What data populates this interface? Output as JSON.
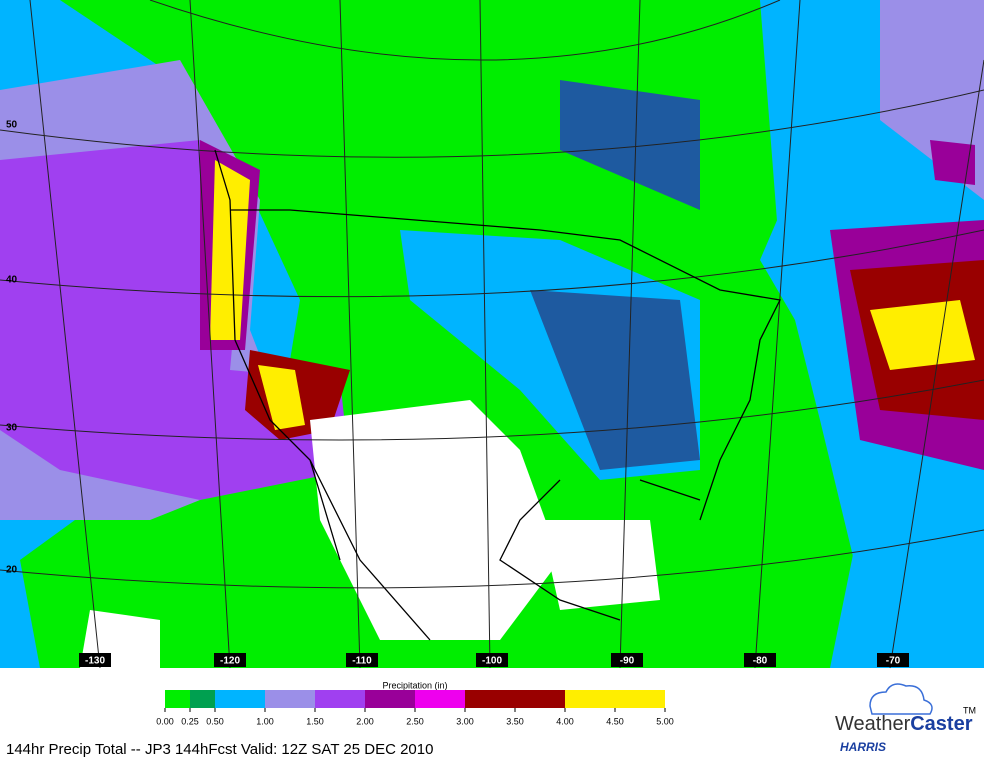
{
  "map": {
    "lat_labels": [
      50,
      40,
      30,
      20
    ],
    "lon_labels": [
      -130,
      -120,
      -110,
      -100,
      -90,
      -80,
      -70
    ],
    "legend": {
      "title": "Precipitation (in)",
      "ticks": [
        {
          "value": 0,
          "label": "0.00"
        },
        {
          "value": 0.25,
          "label": "0.25"
        },
        {
          "value": 0.5,
          "label": "0.50"
        },
        {
          "value": 1,
          "label": "1.00"
        },
        {
          "value": 1.5,
          "label": "1.50"
        },
        {
          "value": 2,
          "label": "2.00"
        },
        {
          "value": 2.5,
          "label": "2.50"
        },
        {
          "value": 3,
          "label": "3.00"
        },
        {
          "value": 3.5,
          "label": "3.50"
        },
        {
          "value": 4,
          "label": "4.00"
        },
        {
          "value": 4.5,
          "label": "4.50"
        },
        {
          "value": 5,
          "label": "5.00"
        }
      ],
      "colors": [
        "#00ee00",
        "#00a050",
        "#00b4ff",
        "#9b8fe8",
        "#a040f0",
        "#990099",
        "#ee00ee",
        "#990000",
        "#990000",
        "#ffee00",
        "#ffee00"
      ]
    },
    "caption": "144hr Precip Total -- JP3 144hFcst Valid: 12Z SAT 25 DEC 2010",
    "logo": {
      "name": "Weather",
      "name_bold": "Caster",
      "tm": "TM",
      "company": "HARRIS"
    }
  }
}
